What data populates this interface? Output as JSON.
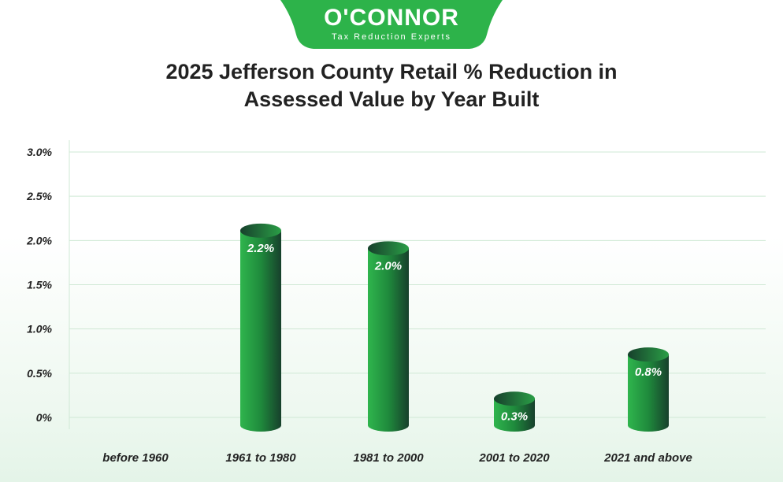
{
  "logo": {
    "name": "O'CONNOR",
    "tagline": "Tax Reduction Experts"
  },
  "colors": {
    "brand": "#2db34a",
    "bar_light": "#2fb54d",
    "bar_dark": "#17402c",
    "grid": "#cfe9d5"
  },
  "chart_data": {
    "type": "bar",
    "title": "2025 Jefferson County Retail % Reduction in Assessed Value by Year Built",
    "title_lines": [
      "2025 Jefferson County Retail % Reduction in",
      "Assessed Value by Year Built"
    ],
    "categories": [
      "before 1960",
      "1961 to 1980",
      "1981 to 2000",
      "2001 to 2020",
      "2021 and above"
    ],
    "values": [
      0,
      2.2,
      2.0,
      0.3,
      0.8
    ],
    "data_labels": [
      "",
      "2.2%",
      "2.0%",
      "0.3%",
      "0.8%"
    ],
    "yticks": [
      "0%",
      "0.5%",
      "1.0%",
      "1.5%",
      "2.0%",
      "2.5%",
      "3.0%"
    ],
    "ylim": [
      0,
      3.0
    ],
    "grid": true,
    "xlabel": "",
    "ylabel": ""
  }
}
